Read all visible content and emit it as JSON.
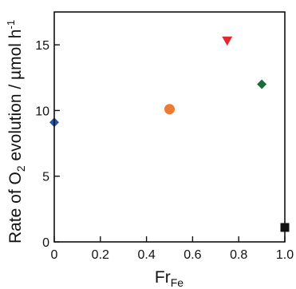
{
  "chart_data": {
    "type": "scatter",
    "title": "",
    "xlabel": {
      "main": "Fr",
      "sub": "Fe"
    },
    "ylabel": {
      "pre": "Rate of O",
      "sub": "2",
      "post": " evolution / µmol h",
      "sup": "-1"
    },
    "xlim": [
      0,
      1.0
    ],
    "ylim": [
      0,
      17.5
    ],
    "x_ticks": [
      {
        "value": 0,
        "label": "0"
      },
      {
        "value": 0.2,
        "label": "0.2"
      },
      {
        "value": 0.4,
        "label": "0.4"
      },
      {
        "value": 0.6,
        "label": "0.6"
      },
      {
        "value": 0.8,
        "label": "0.8"
      },
      {
        "value": 1.0,
        "label": "1.0"
      }
    ],
    "y_ticks": [
      {
        "value": 0,
        "label": "0"
      },
      {
        "value": 5,
        "label": "5"
      },
      {
        "value": 10,
        "label": "10"
      },
      {
        "value": 15,
        "label": "15"
      }
    ],
    "grid": false,
    "legend": "none",
    "points": [
      {
        "x": 0.0,
        "y": 9.1,
        "marker": "diamond",
        "color": "#2453a6"
      },
      {
        "x": 0.5,
        "y": 10.1,
        "marker": "circle",
        "color": "#f07a32"
      },
      {
        "x": 0.75,
        "y": 15.3,
        "marker": "triangle-down",
        "color": "#e2282e"
      },
      {
        "x": 0.9,
        "y": 12.0,
        "marker": "diamond",
        "color": "#1c6b3b"
      },
      {
        "x": 1.0,
        "y": 1.1,
        "marker": "square",
        "color": "#111111"
      }
    ]
  }
}
